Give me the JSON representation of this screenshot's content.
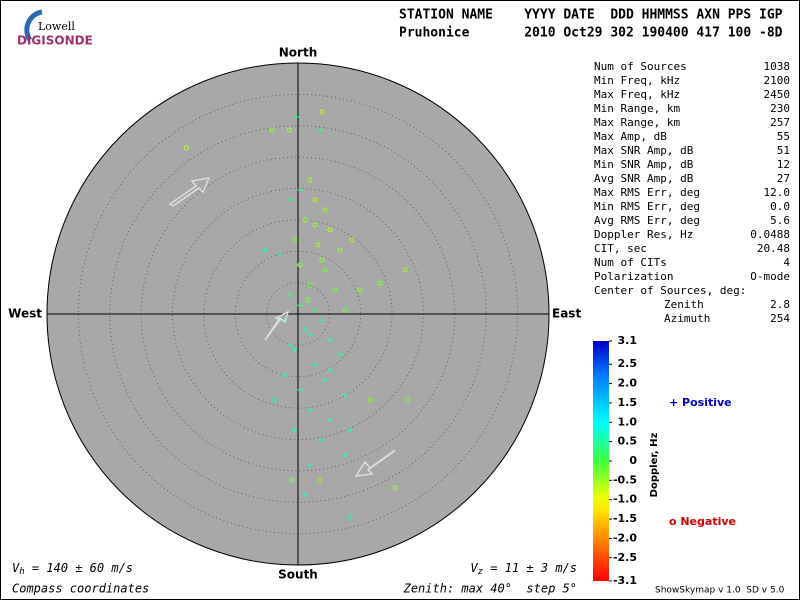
{
  "logo": {
    "top": "Lowell",
    "bottom": "DIGISONDE"
  },
  "header": {
    "labels": "STATION NAME    YYYY DATE  DDD HHMMSS AXN PPS IGP",
    "values": "Pruhonice       2010 Oct29 302 190400 417 100 -8D"
  },
  "stats": [
    [
      "Num of Sources",
      "1038"
    ],
    [
      "Min Freq, kHz",
      "2100"
    ],
    [
      "Max Freq, kHz",
      "2450"
    ],
    [
      "Min Range, km",
      "230"
    ],
    [
      "Max Range, km",
      "257"
    ],
    [
      "Max Amp, dB",
      "55"
    ],
    [
      "Max SNR Amp, dB",
      "51"
    ],
    [
      "Min SNR Amp, dB",
      "12"
    ],
    [
      "Avg SNR Amp, dB",
      "27"
    ],
    [
      "Max RMS Err, deg",
      "12.0"
    ],
    [
      "Min RMS Err, deg",
      "0.0"
    ],
    [
      "Avg RMS Err, deg",
      "5.6"
    ],
    [
      "Doppler Res, Hz",
      "0.0488"
    ],
    [
      "CIT, sec",
      "20.48"
    ],
    [
      "Num of CITs",
      "4"
    ],
    [
      "Polarization",
      "O-mode"
    ]
  ],
  "center": {
    "label": "Center of Sources, deg:",
    "rows": [
      [
        "Zenith",
        "2.8"
      ],
      [
        "Azimuth",
        "254"
      ]
    ]
  },
  "footer": {
    "vh": {
      "symbol": "V",
      "sub": "h",
      "text": " = 140 ± 60 m/s"
    },
    "vz": {
      "symbol": "V",
      "sub": "z",
      "text": " = 11 ± 3 m/s"
    },
    "coords": "Compass coordinates",
    "zenith": "Zenith: max 40°  step 5°",
    "version": "ShowSkymap v 1.0  SD v 5.0"
  },
  "legend": {
    "positive": "+ Positive",
    "negative": "o Negative"
  },
  "chart_data": {
    "type": "scatter",
    "directions": {
      "north": "North",
      "south": "South",
      "east": "East",
      "west": "West"
    },
    "xlim": [
      -40,
      40
    ],
    "ylim": [
      -40,
      40
    ],
    "rings": [
      5,
      10,
      15,
      20,
      25,
      30,
      35,
      40
    ],
    "x": [
      -17.8,
      -4.1,
      -1.4,
      3.8,
      -0.3,
      3.5,
      1.9,
      2.7,
      4.3,
      1.1,
      5.1,
      -0.5,
      3.2,
      6.7,
      17.1,
      13.1,
      -2.9,
      -5.3,
      0.3,
      4.3,
      1.9,
      5.9,
      -1.3,
      7.5,
      0.3,
      3.5,
      -2.1,
      1.9,
      5.1,
      -0.5,
      6.7,
      2.7,
      -2.1,
      4.3,
      0.3,
      7.5,
      -3.7,
      1.9,
      11.5,
      17.5,
      5.1,
      -0.5,
      8.3,
      3.5,
      7.5,
      1.9,
      3.5,
      15.5,
      -1,
      8.3,
      1.1,
      -1.3,
      0.3,
      2.7,
      3.8,
      1.6,
      2.7,
      1.1,
      -1.3,
      5.1,
      9.9,
      8.6
    ],
    "y": [
      26.5,
      29.3,
      29.3,
      32.2,
      31.4,
      29.3,
      21.4,
      18.2,
      16.6,
      15,
      13.4,
      11.8,
      11,
      10.2,
      7,
      4.9,
      9.4,
      10.2,
      7.8,
      7,
      4.6,
      3.8,
      3,
      0.6,
      1.4,
      -1,
      -1,
      -3.3,
      -4.1,
      -5.7,
      -6.5,
      -8.1,
      -9.7,
      -10.5,
      -12.1,
      -12.9,
      -13.7,
      -15.3,
      -13.7,
      -13.7,
      -16.9,
      -18.5,
      -18.5,
      -20.1,
      -22.5,
      -24.1,
      -26.5,
      -27.7,
      -26.5,
      -32.4,
      -28.8,
      18.2,
      19.8,
      14.2,
      8.6,
      2.2,
      0.6,
      -2.5,
      -4.9,
      -8.9,
      3.8,
      11.8
    ],
    "doppler": [
      -0.6,
      -0.5,
      -0.5,
      -0.6,
      0.3,
      0.3,
      -0.5,
      -0.6,
      -0.5,
      -0.4,
      -0.6,
      -0.3,
      -0.5,
      -0.4,
      -0.5,
      -0.4,
      0.4,
      0.5,
      -0.3,
      -0.3,
      -0.2,
      -0.3,
      0.3,
      -0.2,
      0.2,
      0.4,
      0.5,
      0.6,
      0.5,
      0.6,
      0.4,
      0.6,
      0.5,
      0.7,
      0.6,
      0.5,
      0.6,
      0.7,
      -0.3,
      -0.4,
      0.6,
      0.7,
      0.6,
      0.6,
      0.5,
      0.6,
      -0.4,
      -0.5,
      -0.4,
      0.6,
      0.5,
      0.3,
      0.4,
      -0.5,
      -0.4,
      -0.3,
      0.2,
      0.5,
      0.6,
      0.5,
      -0.4,
      -0.5
    ],
    "colorbar": {
      "label": "Doppler, Hz",
      "lim": [
        -3.1,
        3.1
      ],
      "ticks": [
        3.1,
        2.5,
        {
          "value": 2,
          "label": "2.0"
        },
        1.5,
        {
          "value": 1,
          "label": "1.0"
        },
        0.5,
        0,
        -0.5,
        {
          "value": -1,
          "label": "-1.0"
        },
        -1.5,
        {
          "value": -2,
          "label": "-2.0"
        },
        -2.5,
        -3.1
      ]
    }
  }
}
